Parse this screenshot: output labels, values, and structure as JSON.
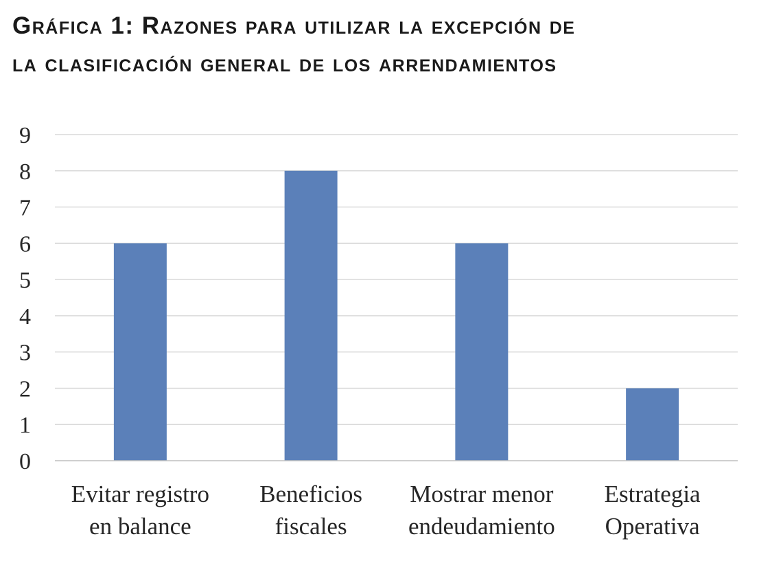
{
  "title": {
    "line1": "Gráfica 1: Razones para utilizar la excepción de",
    "line2": "la clasificación general de los arrendamientos"
  },
  "chart_data": {
    "type": "bar",
    "title": "Gráfica 1: Razones para utilizar la excepción de la clasificación general de los arrendamientos",
    "categories": [
      [
        "Evitar registro",
        "en balance"
      ],
      [
        "Beneficios",
        "fiscales"
      ],
      [
        "Mostrar menor",
        "endeudamiento"
      ],
      [
        "Estrategia",
        "Operativa"
      ]
    ],
    "values": [
      6,
      8,
      6,
      2
    ],
    "ylim": [
      0,
      9
    ],
    "yticks": [
      "0",
      "1",
      "2",
      "3",
      "4",
      "5",
      "6",
      "7",
      "8",
      "9"
    ],
    "xlabel": "",
    "ylabel": "",
    "grid": true,
    "legend": "none",
    "colors": {
      "bar": "#5b80b9",
      "grid": "#d9d9d9",
      "axis": "#bfbfbf"
    }
  }
}
